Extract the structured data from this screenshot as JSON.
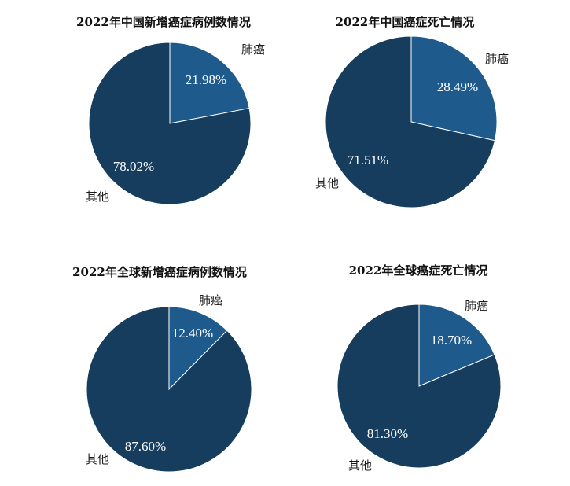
{
  "colors": {
    "lung": "#1e5a8c",
    "other": "#163d5e",
    "border": "#ffffff"
  },
  "chart_data": [
    {
      "type": "pie",
      "title": "2022年中国新增癌症病例数情况",
      "slices": [
        {
          "label": "肺癌",
          "value": 21.98,
          "display": "21.98%"
        },
        {
          "label": "其他",
          "value": 78.02,
          "display": "78.02%"
        }
      ]
    },
    {
      "type": "pie",
      "title": "2022年中国癌症死亡情况",
      "slices": [
        {
          "label": "肺癌",
          "value": 28.49,
          "display": "28.49%"
        },
        {
          "label": "其他",
          "value": 71.51,
          "display": "71.51%"
        }
      ]
    },
    {
      "type": "pie",
      "title": "2022年全球新增癌症病例数情况",
      "slices": [
        {
          "label": "肺癌",
          "value": 12.4,
          "display": "12.40%"
        },
        {
          "label": "其他",
          "value": 87.6,
          "display": "87.60%"
        }
      ]
    },
    {
      "type": "pie",
      "title": "2022年全球癌症死亡情况",
      "slices": [
        {
          "label": "肺癌",
          "value": 18.7,
          "display": "18.70%"
        },
        {
          "label": "其他",
          "value": 81.3,
          "display": "81.30%"
        }
      ]
    }
  ]
}
